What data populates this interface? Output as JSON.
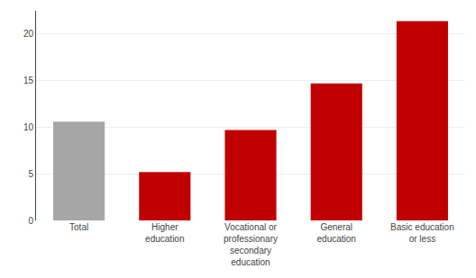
{
  "chart_data": {
    "type": "bar",
    "categories": [
      "Total",
      "Higher\neducation",
      "Vocational or\nprofessionary\nsecondary\neducation",
      "General\neducation",
      "Basic education\nor less"
    ],
    "values": [
      10.6,
      5.2,
      9.7,
      14.7,
      21.4
    ],
    "colors": [
      "#a6a6a6",
      "#c00000",
      "#c00000",
      "#c00000",
      "#c00000"
    ],
    "ylim": [
      0,
      22.5
    ],
    "yticks": [
      0,
      5,
      10,
      15,
      20
    ],
    "grid": true
  }
}
